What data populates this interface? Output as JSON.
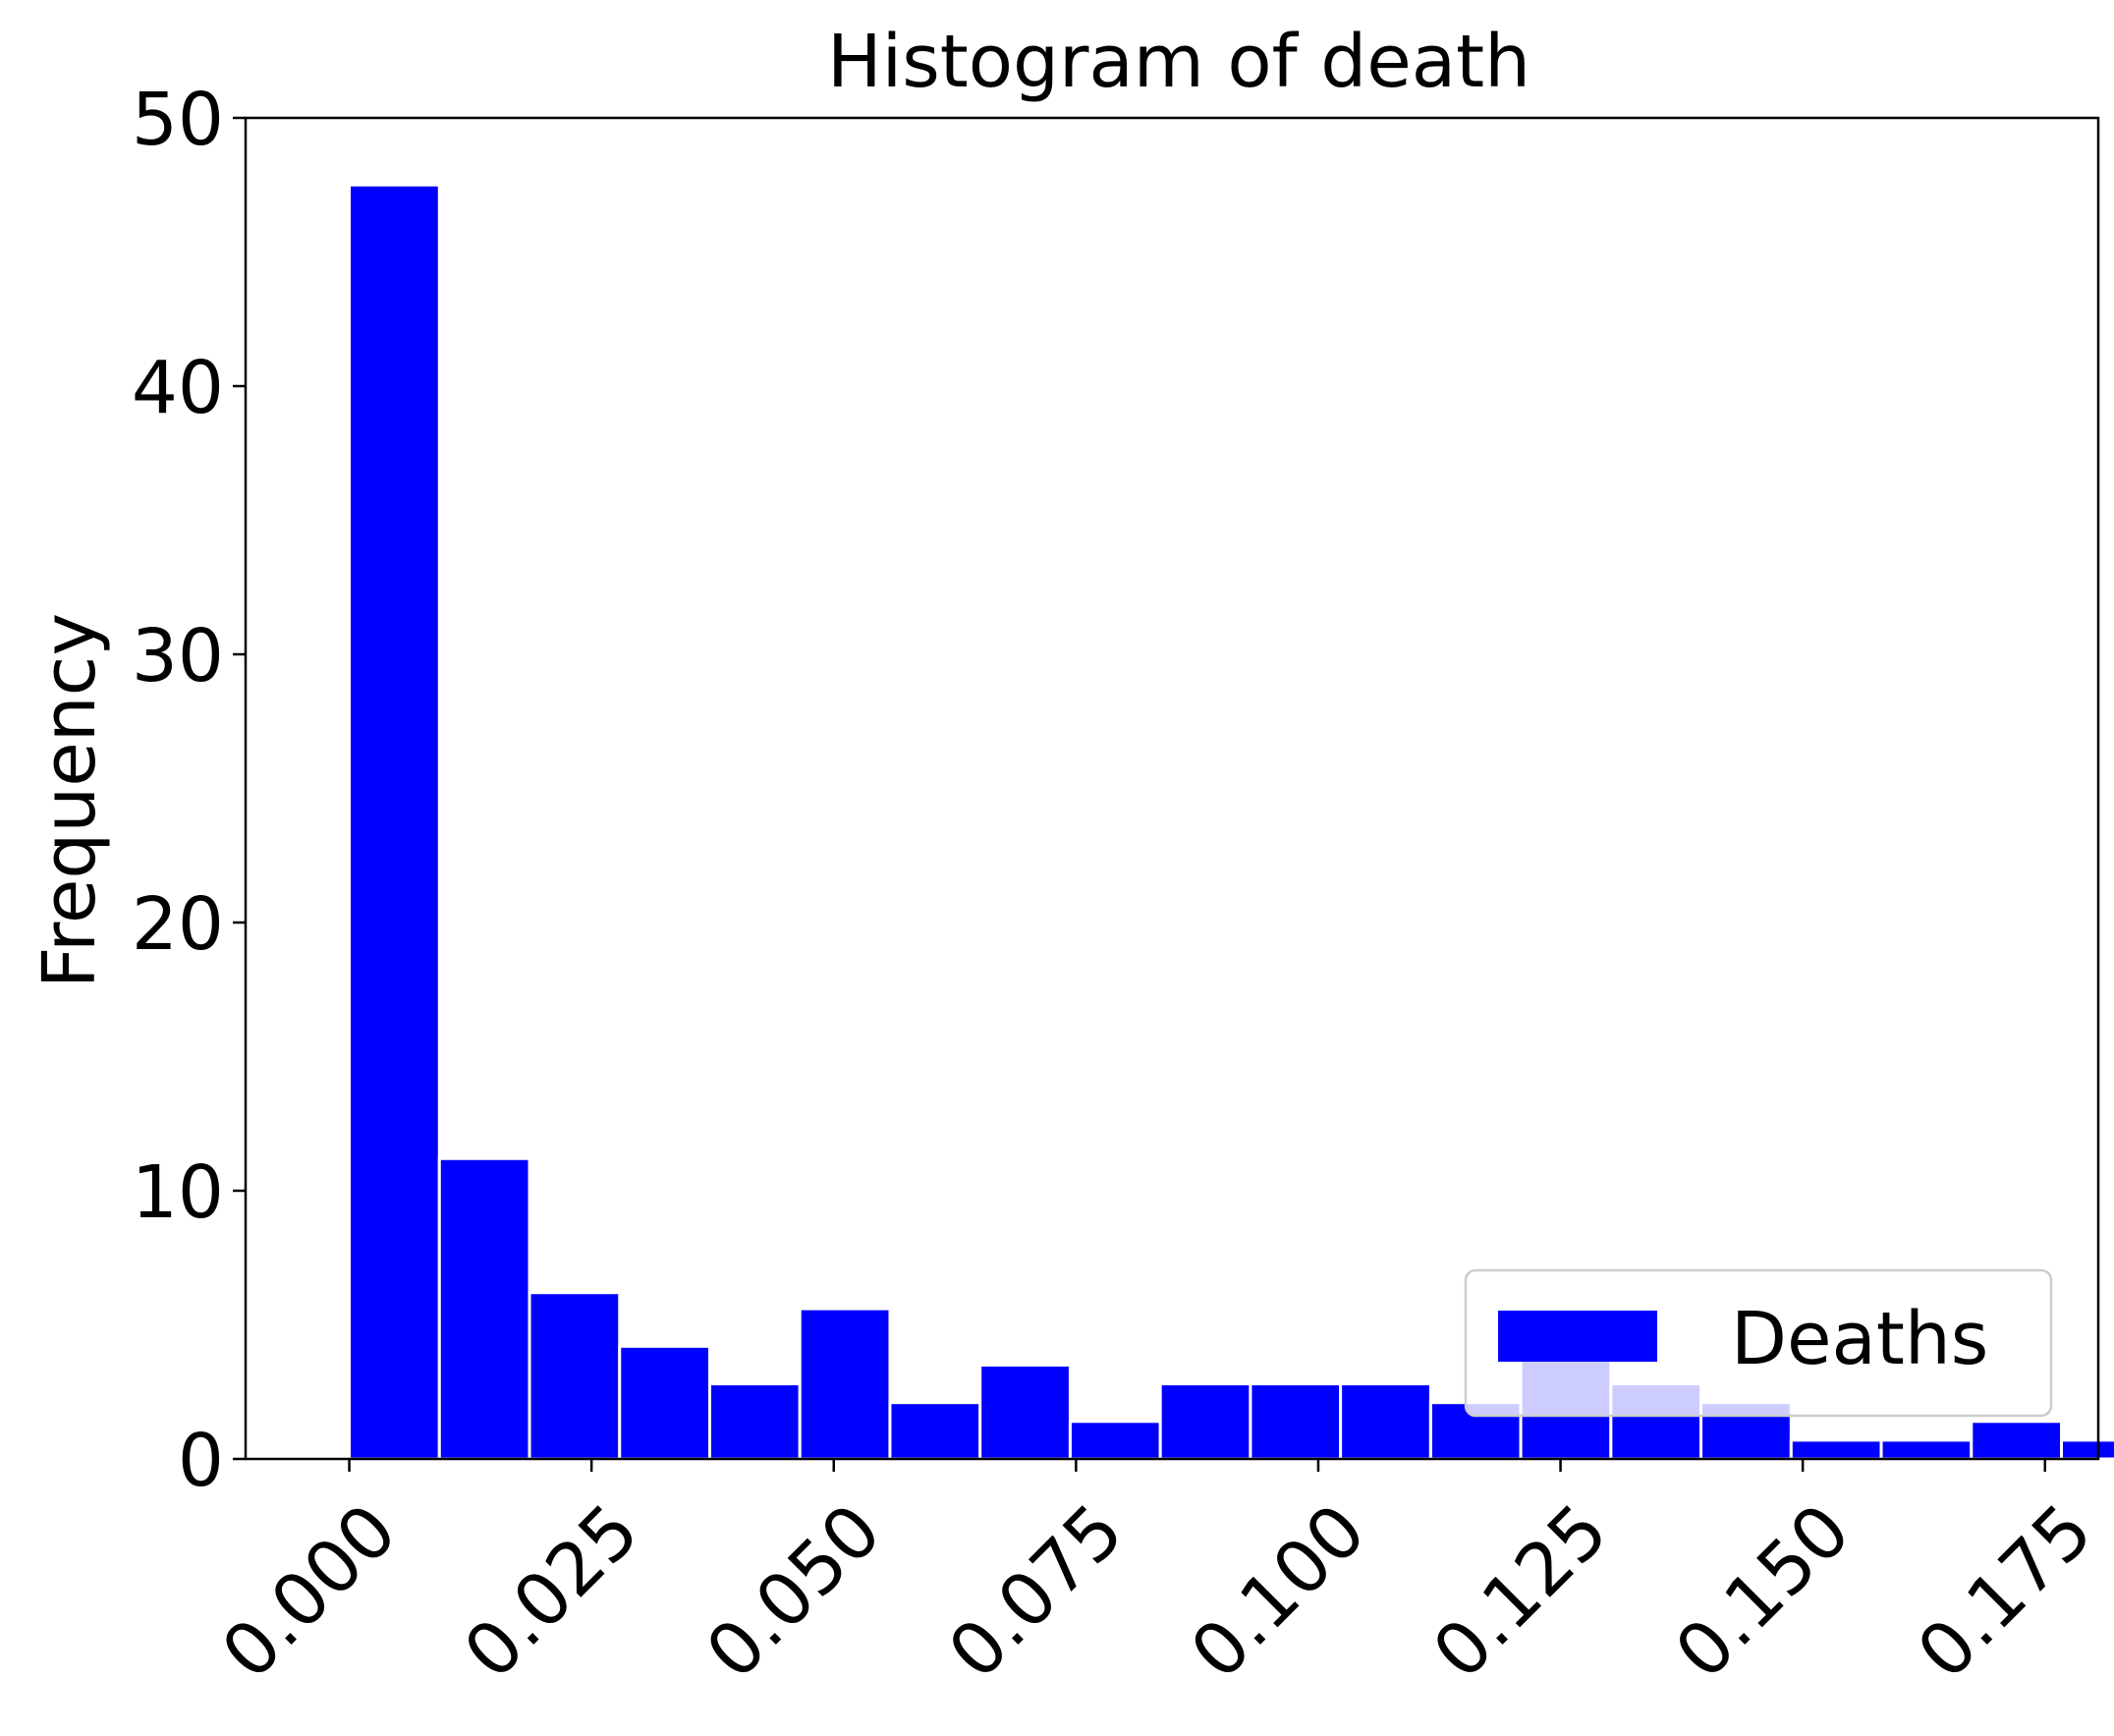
{
  "chart_data": {
    "type": "bar",
    "title": "Histogram of death",
    "xlabel": "",
    "ylabel": "Frequency",
    "xlim": [
      -0.0107,
      0.1805
    ],
    "ylim": [
      0,
      50
    ],
    "x_ticks": [
      {
        "value": 0.0,
        "label": "0.000"
      },
      {
        "value": 0.025,
        "label": "0.025"
      },
      {
        "value": 0.05,
        "label": "0.050"
      },
      {
        "value": 0.075,
        "label": "0.075"
      },
      {
        "value": 0.1,
        "label": "0.100"
      },
      {
        "value": 0.125,
        "label": "0.125"
      },
      {
        "value": 0.15,
        "label": "0.150"
      },
      {
        "value": 0.175,
        "label": "0.175"
      }
    ],
    "y_ticks": [
      {
        "value": 0,
        "label": "0"
      },
      {
        "value": 10,
        "label": "10"
      },
      {
        "value": 20,
        "label": "20"
      },
      {
        "value": 30,
        "label": "30"
      },
      {
        "value": 40,
        "label": "40"
      },
      {
        "value": 50,
        "label": "50"
      }
    ],
    "grid": false,
    "legend": {
      "position": "lower-right",
      "entries": [
        "Deaths"
      ]
    },
    "series": [
      {
        "name": "Deaths",
        "color": "#0000ff",
        "bins": [
          {
            "x0": 0.0,
            "x1": 0.0093,
            "value": 47.5
          },
          {
            "x0": 0.0093,
            "x1": 0.0186,
            "value": 11.2
          },
          {
            "x0": 0.0186,
            "x1": 0.0279,
            "value": 6.2
          },
          {
            "x0": 0.0279,
            "x1": 0.0372,
            "value": 4.2
          },
          {
            "x0": 0.0372,
            "x1": 0.0465,
            "value": 2.8
          },
          {
            "x0": 0.0465,
            "x1": 0.0558,
            "value": 5.6
          },
          {
            "x0": 0.0558,
            "x1": 0.0651,
            "value": 2.1
          },
          {
            "x0": 0.0651,
            "x1": 0.0744,
            "value": 3.5
          },
          {
            "x0": 0.0744,
            "x1": 0.0837,
            "value": 1.4
          },
          {
            "x0": 0.0837,
            "x1": 0.093,
            "value": 2.8
          },
          {
            "x0": 0.093,
            "x1": 0.1023,
            "value": 2.8
          },
          {
            "x0": 0.1023,
            "x1": 0.1116,
            "value": 2.8
          },
          {
            "x0": 0.1116,
            "x1": 0.1209,
            "value": 2.1
          },
          {
            "x0": 0.1209,
            "x1": 0.1302,
            "value": 4.2
          },
          {
            "x0": 0.1302,
            "x1": 0.1395,
            "value": 2.8
          },
          {
            "x0": 0.1395,
            "x1": 0.1488,
            "value": 2.1
          },
          {
            "x0": 0.1488,
            "x1": 0.1581,
            "value": 0.7
          },
          {
            "x0": 0.1581,
            "x1": 0.1674,
            "value": 0.7
          },
          {
            "x0": 0.1674,
            "x1": 0.1767,
            "value": 1.4
          },
          {
            "x0": 0.1767,
            "x1": 0.186,
            "value": 0.7
          }
        ]
      }
    ]
  }
}
